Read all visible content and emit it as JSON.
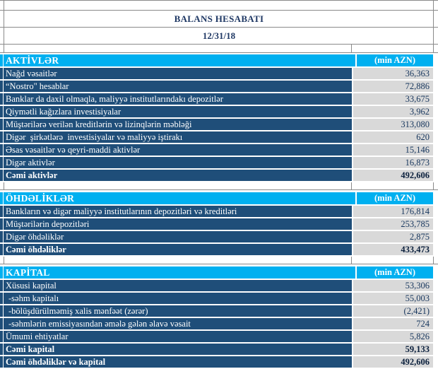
{
  "header": {
    "title": "BALANS HESABATI",
    "date": "12/31/18"
  },
  "unit_label": "(min AZN)",
  "colors": {
    "section_header_bg": "#00B0F0",
    "row_bg": "#1F4E79",
    "value_bg": "#D9D9D9",
    "number_text": "#17365D",
    "total_text": "#0A1F3C",
    "title_text": "#1F3864",
    "gridline": "#8a8a8a"
  },
  "sections": [
    {
      "name": "AKTİVLƏR",
      "rows": [
        {
          "label": "Nağd vəsaitlər",
          "value": "36,363"
        },
        {
          "label": "“Nostro\" hesablar",
          "value": "72,886"
        },
        {
          "label": "Banklar da daxil olmaqla, maliyyə institutlarındakı depozitlər",
          "value": "33,675"
        },
        {
          "label": "Qiymətli kağızlara investisiyalar",
          "value": "3,962"
        },
        {
          "label": "Müştərilərə verilən kreditlərin və lizinqlərin məbləği",
          "value": "313,080"
        },
        {
          "label": "Digər  şirkətlərə  investisiyalar və maliyyə iştirakı",
          "value": "620"
        },
        {
          "label": "Əsas vəsaitlər və qeyri-maddi aktivlər",
          "value": "15,146"
        },
        {
          "label": "Digər aktivlər",
          "value": "16,873"
        },
        {
          "label": "Cəmi aktivlər",
          "value": "492,606",
          "bold": true
        }
      ]
    },
    {
      "name": "ÖHDƏLİKLƏR",
      "rows": [
        {
          "label": "Bankların və digər maliyyə institutlarının depozitləri və kreditləri",
          "value": "176,814"
        },
        {
          "label": "Müştərilərin depozitləri",
          "value": "253,785"
        },
        {
          "label": "Digər öhdəliklər",
          "value": "2,875"
        },
        {
          "label": "Cəmi öhdəliklər",
          "value": "433,473",
          "bold": true
        }
      ]
    },
    {
      "name": "KAPİTAL",
      "rows": [
        {
          "label": "Xüsusi kapital",
          "value": "53,306"
        },
        {
          "label": "-səhm kapitalı",
          "value": "55,003",
          "indent": true
        },
        {
          "label": "-bölüşdürülməmiş xalis mənfəət (zərər)",
          "value": "(2,421)",
          "indent": true
        },
        {
          "label": "-səhmlərin emissiyasından əmələ gələn əlavə vəsait",
          "value": "724",
          "indent": true
        },
        {
          "label": "Ümumi ehtiyatlar",
          "value": "5,826"
        },
        {
          "label": "Cəmi kapital",
          "value": "59,133",
          "bold": true
        },
        {
          "label": "Cəmi öhdəliklər və kapital",
          "value": "492,606",
          "bold": true
        }
      ]
    }
  ]
}
